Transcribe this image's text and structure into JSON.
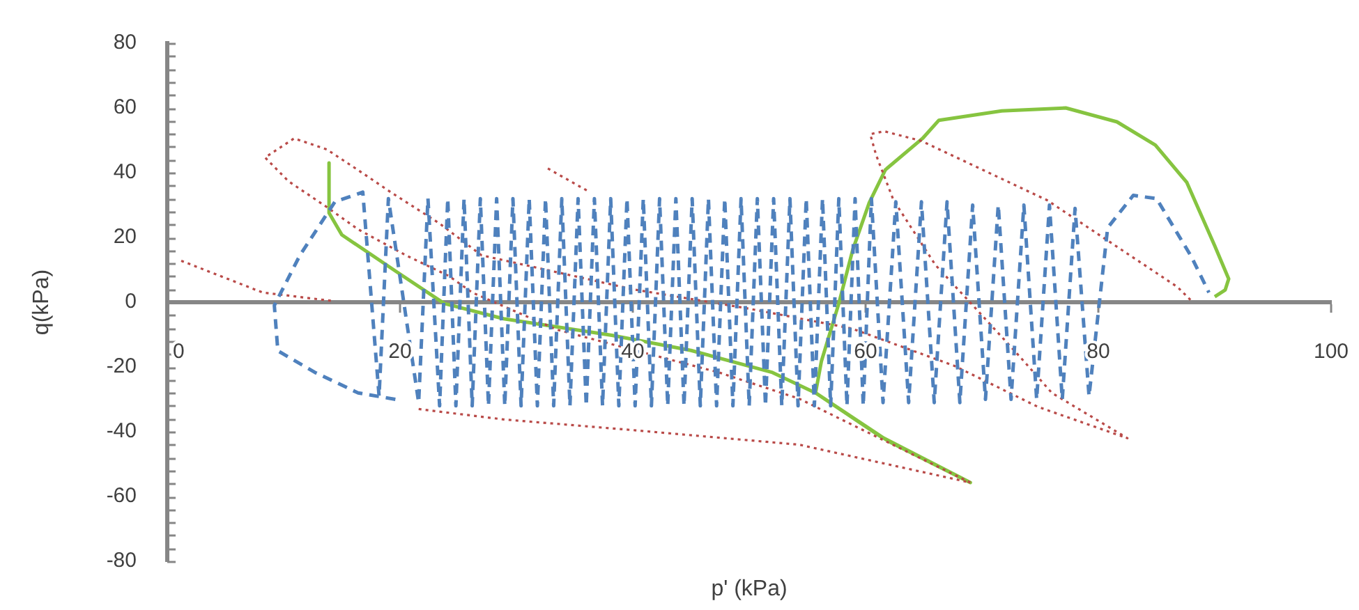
{
  "chart_data": {
    "type": "line",
    "xlabel": "p' (kPa)",
    "ylabel": "q(kPa)",
    "xlim": [
      0,
      100
    ],
    "ylim": [
      -80,
      80
    ],
    "xticks": [
      0,
      20,
      40,
      60,
      80,
      100
    ],
    "yticks": [
      -80,
      {
        "value": -76,
        "label": null
      },
      {
        "value": -72,
        "label": null
      },
      {
        "value": -68,
        "label": null
      },
      {
        "value": -64,
        "label": null
      },
      -60,
      {
        "value": -56,
        "label": null
      },
      {
        "value": -52,
        "label": null
      },
      {
        "value": -48,
        "label": null
      },
      {
        "value": -44,
        "label": null
      },
      -40,
      {
        "value": -36,
        "label": null
      },
      {
        "value": -32,
        "label": null
      },
      {
        "value": -28,
        "label": null
      },
      {
        "value": -24,
        "label": null
      },
      -20,
      {
        "value": -16,
        "label": null
      },
      {
        "value": -12,
        "label": null
      },
      {
        "value": -8,
        "label": null
      },
      {
        "value": -4,
        "label": null
      },
      0,
      {
        "value": 4,
        "label": null
      },
      {
        "value": 8,
        "label": null
      },
      {
        "value": 12,
        "label": null
      },
      {
        "value": 16,
        "label": null
      },
      20,
      {
        "value": 24,
        "label": null
      },
      {
        "value": 28,
        "label": null
      },
      {
        "value": 32,
        "label": null
      },
      {
        "value": 36,
        "label": null
      },
      40,
      {
        "value": 44,
        "label": null
      },
      {
        "value": 48,
        "label": null
      },
      {
        "value": 52,
        "label": null
      },
      {
        "value": 56,
        "label": null
      },
      60,
      {
        "value": 64,
        "label": null
      },
      {
        "value": 68,
        "label": null
      },
      {
        "value": 72,
        "label": null
      },
      {
        "value": 76,
        "label": null
      },
      80
    ],
    "grid": false,
    "legend": false,
    "marker": "none",
    "series": [
      {
        "color": "#4f81bd",
        "line_style": "dashed",
        "x": [
          19.6,
          16.4,
          12.7,
          9.5,
          9.2,
          11.4,
          14.4,
          16.8,
          18.2,
          19,
          21.6,
          22.4,
          23.4,
          24.1,
          24.8,
          25.5,
          26.2,
          26.9,
          27.6,
          28.3,
          29,
          29.7,
          30.4,
          31.1,
          31.8,
          32.5,
          33.2,
          33.9,
          34.6,
          35.3,
          36,
          36.7,
          37.4,
          38.1,
          38.8,
          39.5,
          40.2,
          40.9,
          41.6,
          42.3,
          43,
          43.7,
          44.4,
          45.1,
          45.8,
          46.5,
          47.2,
          47.9,
          48.6,
          49.3,
          50,
          50.7,
          51.4,
          52.1,
          52.8,
          53.5,
          54.2,
          54.9,
          55.6,
          56.3,
          57,
          57.7,
          58.4,
          59.1,
          59.8,
          60.5,
          61.5,
          62.6,
          63.7,
          64.8,
          65.9,
          67,
          68.1,
          69.2,
          70.3,
          71.4,
          72.5,
          73.6,
          74.7,
          75.8,
          76.9,
          78,
          79.2,
          80.8,
          83,
          85,
          88,
          89.5
        ],
        "values": [
          -30,
          -28,
          -21.7,
          -15,
          -1,
          14.5,
          31,
          34,
          -29,
          32,
          -31,
          32,
          -32,
          32,
          -32,
          32,
          -32,
          32,
          -32,
          32,
          -32,
          32,
          -32,
          32,
          -32,
          32,
          -32,
          32,
          -32,
          32,
          -32,
          32,
          -32,
          32,
          -32,
          32,
          -32,
          32,
          -32,
          32,
          -32,
          32,
          -32,
          32,
          -32,
          32,
          -32,
          32,
          -32,
          32,
          -32,
          32,
          -32,
          32,
          -32,
          32,
          -32,
          32,
          -32,
          32,
          -32,
          32,
          -32,
          32,
          -32,
          32,
          -31,
          31,
          -31,
          31,
          -31,
          31,
          -31,
          30,
          -30,
          30,
          -30,
          30,
          -30,
          30,
          -30,
          29,
          -29,
          23,
          33,
          32,
          14,
          3
        ]
      },
      {
        "color": "#b94a48",
        "line_style": "dotted",
        "x": [
          1.2,
          8.2,
          14.4,
          null,
          21.6,
          28.9,
          40,
          54.3,
          69,
          61.2,
          54.3,
          47.4,
          33.5,
          26.2,
          24.2,
          20.5,
          16.4,
          13.7,
          10.4,
          8.4,
          10.9,
          13.7,
          16.4,
          19.2,
          23.4,
          27,
          40,
          50,
          58.8,
          67.6,
          74.8,
          82.5,
          76,
          73.2,
          69.3,
          66,
          62.4,
          60.9,
          60.4,
          61.6,
          64.8,
          75.6,
          80.4,
          86.8,
          88,
          null,
          32.7,
          36.3
        ],
        "values": [
          12.8,
          3,
          0.3,
          null,
          -33,
          -36.2,
          -39.5,
          -44,
          -55.7,
          -42,
          -29.8,
          -21.7,
          -8.5,
          3,
          8.1,
          14.5,
          22.5,
          29.4,
          37.4,
          44.7,
          50.6,
          47.2,
          40.8,
          34,
          24.3,
          14.5,
          4,
          -2,
          -8.1,
          -19.6,
          -32.3,
          -42,
          -28,
          -16.6,
          -1.3,
          11.5,
          31.5,
          45.5,
          51.9,
          52.8,
          49.8,
          31.5,
          20,
          4.7,
          0.4,
          null,
          41.3,
          34
        ]
      },
      {
        "color": "#86c440",
        "line_style": "solid",
        "x": [
          13.9,
          13.9,
          15,
          19.7,
          23.8,
          28.9,
          38.2,
          45,
          52,
          55.7,
          61.2,
          69,
          62,
          55.7,
          56.2,
          57.7,
          58.9,
          60.3,
          61.7,
          64.9,
          66.3,
          71.7,
          77.2,
          81.6,
          84.9,
          87.6,
          90,
          91.2,
          90.9,
          90
        ],
        "values": [
          43,
          27.6,
          20.8,
          9.4,
          -0.4,
          -5.1,
          -10.2,
          -14.9,
          -21.7,
          -28,
          -41.3,
          -55.7,
          -43,
          -28,
          -18.3,
          -0.4,
          16.2,
          30.6,
          40.9,
          50.6,
          56.2,
          59.1,
          60,
          55.7,
          48.5,
          37,
          17.4,
          7.2,
          3.8,
          1.7
        ]
      }
    ]
  }
}
